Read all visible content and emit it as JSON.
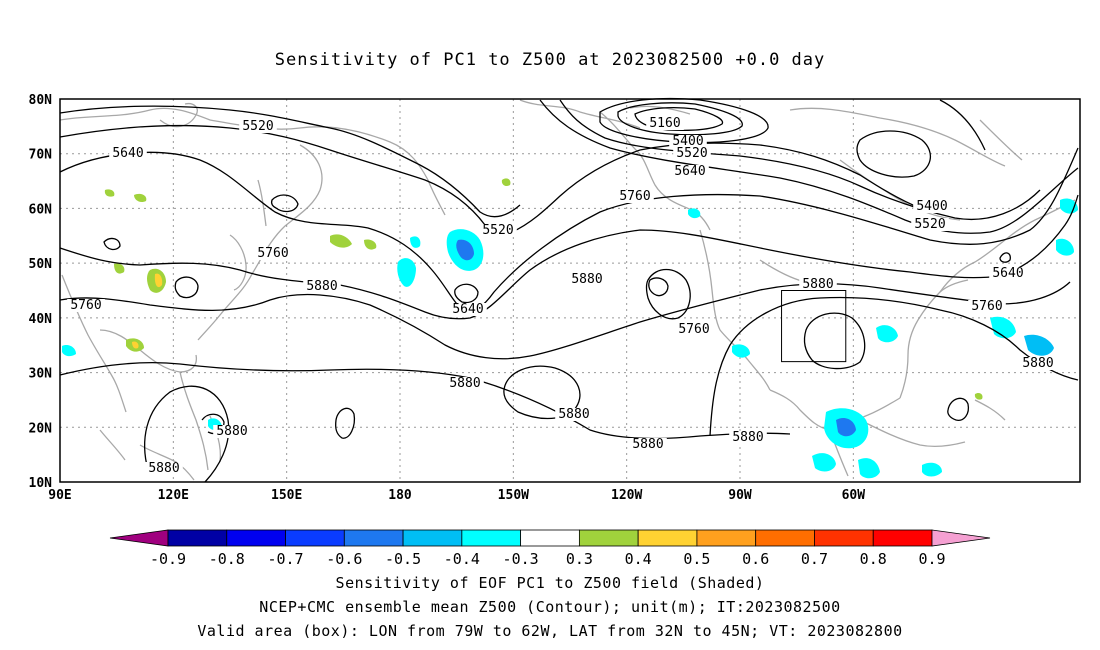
{
  "title": "Sensitivity of PC1 to Z500 at 2023082500 +0.0 day",
  "map": {
    "lon_labels": [
      "90E",
      "120E",
      "150E",
      "180",
      "150W",
      "120W",
      "90W",
      "60W"
    ],
    "lat_labels": [
      "80N",
      "70N",
      "60N",
      "50N",
      "40N",
      "30N",
      "20N",
      "10N"
    ],
    "box": {
      "lon": [
        "79W",
        "62W"
      ],
      "lat": [
        "32N",
        "45N"
      ]
    },
    "contour_labels": [
      "5160",
      "5400",
      "5400",
      "5520",
      "5520",
      "5520",
      "5520",
      "5640",
      "5640",
      "5640",
      "5640",
      "5760",
      "5760",
      "5760",
      "5760",
      "5760",
      "5880",
      "5880",
      "5880",
      "5880",
      "5880",
      "5880",
      "5880",
      "5880",
      "5880",
      "5880"
    ],
    "colors": {
      "coast": "#a8a8a8",
      "contour": "#000000",
      "grid": "#999999"
    }
  },
  "colorbar": {
    "labels": [
      "-0.9",
      "-0.8",
      "-0.7",
      "-0.6",
      "-0.5",
      "-0.4",
      "-0.3",
      "0.3",
      "0.4",
      "0.5",
      "0.6",
      "0.7",
      "0.8",
      "0.9"
    ],
    "colors": [
      "#a0007f",
      "#0000a5",
      "#0000f0",
      "#0a3cff",
      "#1e78f0",
      "#00bef5",
      "#00ffff",
      "#ffffff",
      "#a0d23c",
      "#ffd232",
      "#ffa01e",
      "#ff6e00",
      "#ff3200",
      "#ff0000",
      "#f5a0d2"
    ]
  },
  "caption": {
    "line1": "Sensitivity of EOF PC1 to Z500 field (Shaded)",
    "line2": "NCEP+CMC ensemble mean Z500 (Contour); unit(m); IT:2023082500",
    "line3": "Valid area (box): LON from 79W to 62W, LAT from 32N to 45N; VT: 2023082800"
  }
}
